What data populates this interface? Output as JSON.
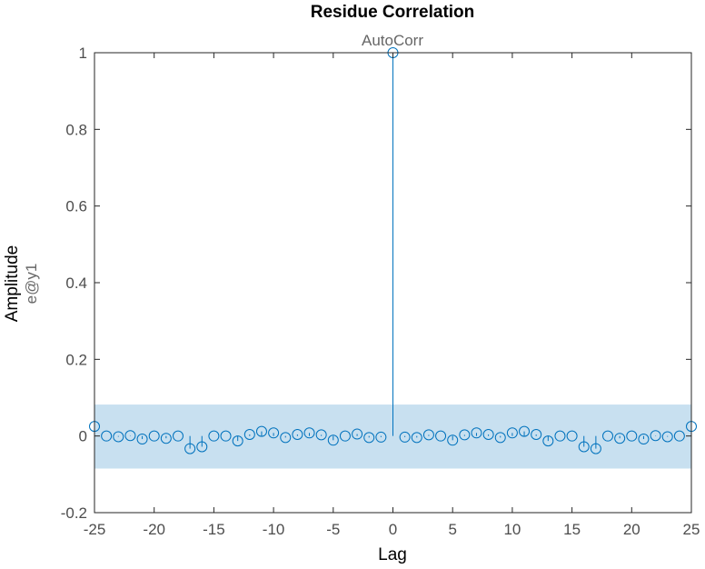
{
  "chart_data": {
    "type": "stem",
    "title": "Residue Correlation",
    "subtitle": "AutoCorr",
    "xlabel": "Lag",
    "ylabel": "Amplitude",
    "ylabel_secondary": "e@y1",
    "xlim": [
      -25,
      25
    ],
    "ylim": [
      -0.2,
      1
    ],
    "x_ticks": [
      -25,
      -20,
      -15,
      -10,
      -5,
      0,
      5,
      10,
      15,
      20,
      25
    ],
    "y_ticks": [
      -0.2,
      0,
      0.2,
      0.4,
      0.6,
      0.8,
      1
    ],
    "y_tick_labels": [
      "-0.2",
      "0",
      "0.2",
      "0.4",
      "0.6",
      "0.8",
      "1"
    ],
    "confidence_band": [
      -0.085,
      0.082
    ],
    "grid": false,
    "colors": {
      "stem": "#0072bd",
      "band": "#c8e0f0",
      "axis": "#262626"
    },
    "x": [
      -25,
      -24,
      -23,
      -22,
      -21,
      -20,
      -19,
      -18,
      -17,
      -16,
      -15,
      -14,
      -13,
      -12,
      -11,
      -10,
      -9,
      -8,
      -7,
      -6,
      -5,
      -4,
      -3,
      -2,
      -1,
      0,
      1,
      2,
      3,
      4,
      5,
      6,
      7,
      8,
      9,
      10,
      11,
      12,
      13,
      14,
      15,
      16,
      17,
      18,
      19,
      20,
      21,
      22,
      23,
      24,
      25
    ],
    "values": [
      0.025,
      0.0,
      -0.002,
      0.001,
      -0.008,
      0.0,
      -0.006,
      0.0,
      -0.033,
      -0.028,
      0.0,
      0.0,
      -0.013,
      0.004,
      0.012,
      0.008,
      -0.004,
      0.004,
      0.008,
      0.003,
      -0.011,
      0.0,
      0.005,
      -0.004,
      -0.003,
      1.0,
      -0.003,
      -0.004,
      0.003,
      0.0,
      -0.011,
      0.003,
      0.008,
      0.004,
      -0.004,
      0.008,
      0.012,
      0.004,
      -0.013,
      0.0,
      0.0,
      -0.028,
      -0.033,
      0.0,
      -0.006,
      0.0,
      -0.008,
      0.001,
      -0.002,
      0.0,
      0.025
    ]
  }
}
